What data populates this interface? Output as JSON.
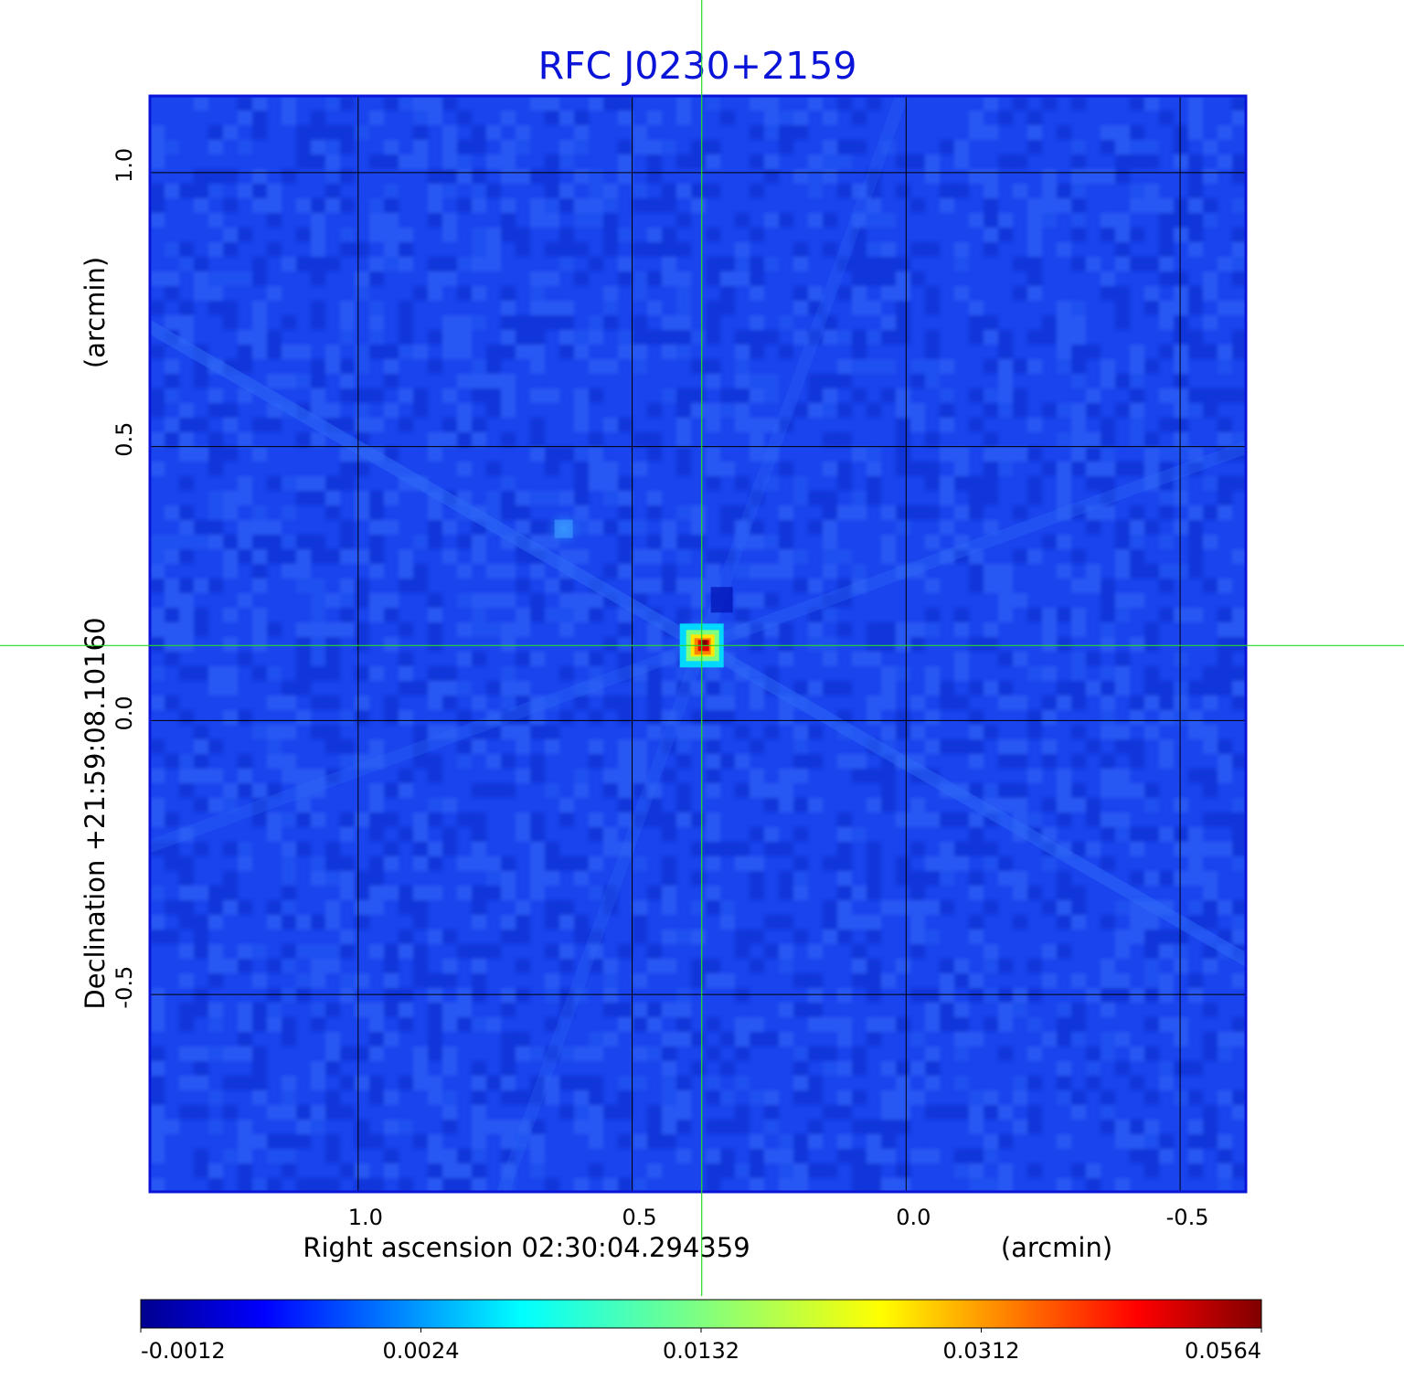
{
  "chart_data": {
    "type": "heatmap",
    "title": "RFC J0230+2159",
    "title_color": "#0a14d8",
    "xlabel": "Right ascension  02:30:04.294359",
    "xunit": "(arcmin)",
    "ylabel": "Declination  +21:59:08.10160",
    "yunit": "(arcmin)",
    "x_ticks": [
      1.0,
      0.5,
      0.0,
      -0.5
    ],
    "x_tick_labels": [
      "1.0",
      "0.5",
      "0.0",
      "-0.5"
    ],
    "y_ticks": [
      1.0,
      0.5,
      0.0,
      -0.5
    ],
    "y_tick_labels": [
      "1.0",
      "0.5",
      "0.0",
      "-0.5"
    ],
    "xlim": [
      1.38,
      -0.62
    ],
    "ylim": [
      -0.86,
      1.14
    ],
    "grid": true,
    "grid_color": "#000000",
    "crosshair": {
      "x": 0.373,
      "y": 0.137,
      "color": "#22dd22"
    },
    "sources": [
      {
        "name": "main",
        "x": 0.373,
        "y": 0.137,
        "peak": 0.0564
      },
      {
        "name": "secondary",
        "x": 0.625,
        "y": 0.35,
        "peak": 0.004
      }
    ],
    "colormap": "jet",
    "colorbar_ticks": [
      "-0.0012",
      "0.0024",
      "0.0132",
      "0.0312",
      "0.0564"
    ],
    "colorbar_orientation": "horizontal",
    "background_color": "#1a44ee"
  }
}
